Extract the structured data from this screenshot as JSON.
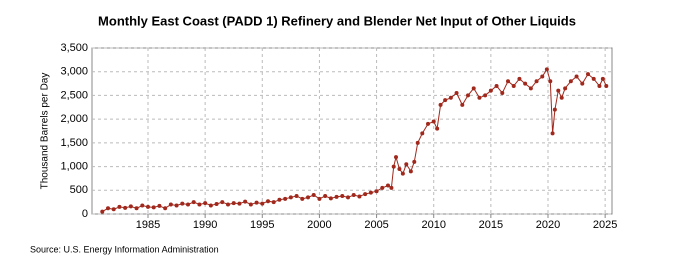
{
  "chart_data": {
    "type": "line",
    "title": "Monthly East Coast (PADD 1) Refinery and Blender Net Input of Other Liquids",
    "y_label": "Thousand Barrels per Day",
    "source": "Source: U.S. Energy Information Administration",
    "x": [
      1981.0,
      1981.5,
      1982.0,
      1982.5,
      1983.0,
      1983.5,
      1984.0,
      1984.5,
      1985.0,
      1985.5,
      1986.0,
      1986.5,
      1987.0,
      1987.5,
      1988.0,
      1988.5,
      1989.0,
      1989.5,
      1990.0,
      1990.5,
      1991.0,
      1991.5,
      1992.0,
      1992.5,
      1993.0,
      1993.5,
      1994.0,
      1994.5,
      1995.0,
      1995.5,
      1996.0,
      1996.5,
      1997.0,
      1997.5,
      1998.0,
      1998.5,
      1999.0,
      1999.5,
      2000.0,
      2000.5,
      2001.0,
      2001.5,
      2002.0,
      2002.5,
      2003.0,
      2003.5,
      2004.0,
      2004.5,
      2005.0,
      2005.5,
      2006.0,
      2006.3,
      2006.5,
      2006.7,
      2007.0,
      2007.3,
      2007.6,
      2008.0,
      2008.3,
      2008.6,
      2009.0,
      2009.5,
      2010.0,
      2010.3,
      2010.6,
      2011.0,
      2011.5,
      2012.0,
      2012.5,
      2013.0,
      2013.5,
      2014.0,
      2014.5,
      2015.0,
      2015.5,
      2016.0,
      2016.5,
      2017.0,
      2017.5,
      2018.0,
      2018.5,
      2019.0,
      2019.5,
      2019.9,
      2020.2,
      2020.4,
      2020.6,
      2020.9,
      2021.2,
      2021.5,
      2022.0,
      2022.5,
      2023.0,
      2023.5,
      2024.0,
      2024.5,
      2024.8,
      2025.1
    ],
    "series": [
      {
        "name": "Net Input of Other Liquids",
        "color": "#a0281c",
        "values": [
          50,
          120,
          100,
          150,
          130,
          160,
          120,
          180,
          150,
          140,
          170,
          120,
          200,
          180,
          220,
          200,
          250,
          200,
          230,
          180,
          210,
          250,
          200,
          230,
          220,
          260,
          200,
          240,
          220,
          270,
          250,
          300,
          320,
          350,
          380,
          320,
          350,
          400,
          320,
          380,
          330,
          360,
          380,
          350,
          400,
          370,
          420,
          450,
          480,
          550,
          600,
          550,
          1000,
          1200,
          950,
          850,
          1050,
          900,
          1100,
          1500,
          1700,
          1900,
          1950,
          1800,
          2300,
          2400,
          2450,
          2550,
          2300,
          2500,
          2650,
          2450,
          2500,
          2600,
          2700,
          2550,
          2800,
          2700,
          2850,
          2750,
          2650,
          2800,
          2900,
          3050,
          2800,
          1700,
          2200,
          2600,
          2450,
          2650,
          2800,
          2900,
          2750,
          2950,
          2850,
          2700,
          2850,
          2700
        ]
      }
    ],
    "xlim": [
      1980.1,
      2025.6
    ],
    "xticks": [
      1985,
      1990,
      1995,
      2000,
      2005,
      2010,
      2015,
      2020,
      2025
    ],
    "ylim": [
      0,
      3500
    ],
    "yticks": [
      0,
      500,
      {
        "value": 1000,
        "label": "1,000"
      },
      {
        "value": 1500,
        "label": "1,500"
      },
      {
        "value": 2000,
        "label": "2,000"
      },
      {
        "value": 2500,
        "label": "2,500"
      },
      {
        "value": 3000,
        "label": "3,000"
      },
      {
        "value": 3500,
        "label": "3,500"
      }
    ],
    "grid": true
  }
}
